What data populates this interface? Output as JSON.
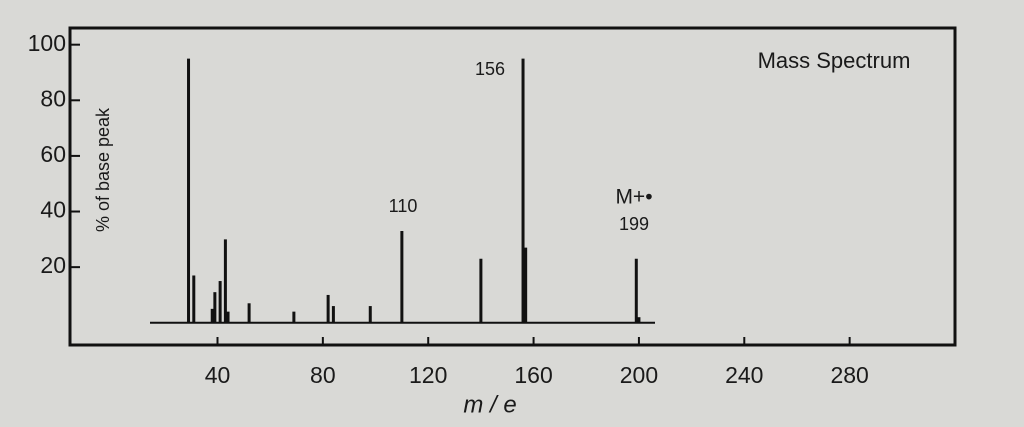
{
  "chart_data": {
    "type": "bar",
    "title": "Mass Spectrum",
    "x_label": "m / e",
    "y_label": "% of base peak",
    "x": [
      29,
      31,
      38,
      39,
      41,
      43,
      44,
      52,
      69,
      82,
      84,
      98,
      110,
      140,
      156,
      157,
      199,
      200
    ],
    "values": [
      95,
      17,
      5,
      11,
      15,
      30,
      4,
      7,
      4,
      10,
      6,
      6,
      33,
      23,
      95,
      27,
      23,
      2
    ],
    "color": "#111111",
    "annotations": [
      "156",
      "110",
      "M+•",
      "199"
    ],
    "xlim": [
      -16,
      320
    ],
    "xticks": [
      40,
      80,
      120,
      160,
      200,
      240,
      280
    ],
    "ylim": [
      -8,
      106
    ],
    "yticks": [
      20,
      40,
      60,
      80,
      100
    ]
  }
}
